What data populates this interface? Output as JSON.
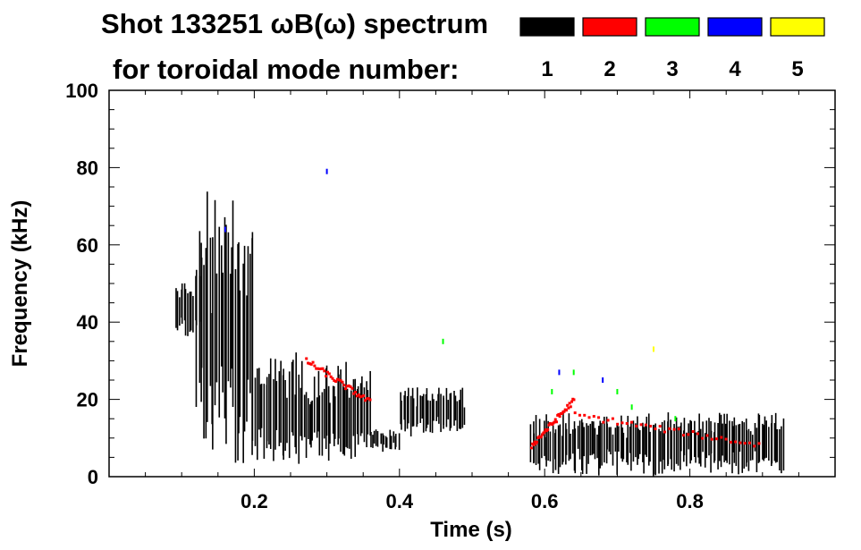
{
  "chart_data": {
    "type": "heatmap",
    "title_line1": "Shot 133251 ωB(ω) spectrum",
    "title_line2": "for toroidal mode number:",
    "xlabel": "Time (s)",
    "ylabel": "Frequency (kHz)",
    "xlim": [
      0.0,
      1.0
    ],
    "ylim": [
      0,
      100
    ],
    "xticks": [
      0.2,
      0.4,
      0.6,
      0.8
    ],
    "xtick_labels": [
      "0.2",
      "0.4",
      "0.6",
      "0.8"
    ],
    "yticks": [
      0,
      20,
      40,
      60,
      80,
      100
    ],
    "ytick_labels": [
      "0",
      "20",
      "40",
      "60",
      "80",
      "100"
    ],
    "legend": [
      {
        "label": "1",
        "color": "#000000"
      },
      {
        "label": "2",
        "color": "#ff0000"
      },
      {
        "label": "3",
        "color": "#00ff00"
      },
      {
        "label": "4",
        "color": "#0000ff"
      },
      {
        "label": "5",
        "color": "#ffff00"
      }
    ],
    "series": [
      {
        "name": "n=1",
        "color": "#000000",
        "regions": [
          {
            "t": [
              0.09,
              0.125
            ],
            "f": [
              36,
              52
            ]
          },
          {
            "t": [
              0.12,
              0.2
            ],
            "f": [
              8,
              65
            ]
          },
          {
            "t": [
              0.2,
              0.26
            ],
            "f": [
              5,
              30
            ]
          },
          {
            "t": [
              0.26,
              0.36
            ],
            "f": [
              5,
              28
            ]
          },
          {
            "t": [
              0.36,
              0.4
            ],
            "f": [
              7,
              12
            ]
          },
          {
            "t": [
              0.4,
              0.49
            ],
            "f": [
              12,
              22
            ]
          },
          {
            "t": [
              0.58,
              0.93
            ],
            "f": [
              2,
              15
            ]
          }
        ]
      },
      {
        "name": "n=2",
        "color": "#ff0000",
        "lines": [
          {
            "t": [
              0.27,
              0.36
            ],
            "f": [
              30,
              19
            ]
          },
          {
            "t": [
              0.58,
              0.64
            ],
            "f": [
              8,
              20
            ]
          },
          {
            "t": [
              0.64,
              0.9
            ],
            "f": [
              16,
              8
            ]
          }
        ]
      },
      {
        "name": "n=3",
        "color": "#00ff00",
        "points": [
          [
            0.61,
            22
          ],
          [
            0.64,
            27
          ],
          [
            0.7,
            22
          ],
          [
            0.72,
            18
          ],
          [
            0.78,
            15
          ],
          [
            0.46,
            35
          ]
        ]
      },
      {
        "name": "n=4",
        "color": "#0000ff",
        "points": [
          [
            0.16,
            64
          ],
          [
            0.62,
            27
          ],
          [
            0.68,
            25
          ],
          [
            0.3,
            79
          ]
        ]
      },
      {
        "name": "n=5",
        "color": "#ffff00",
        "points": [
          [
            0.75,
            33
          ]
        ]
      }
    ]
  }
}
